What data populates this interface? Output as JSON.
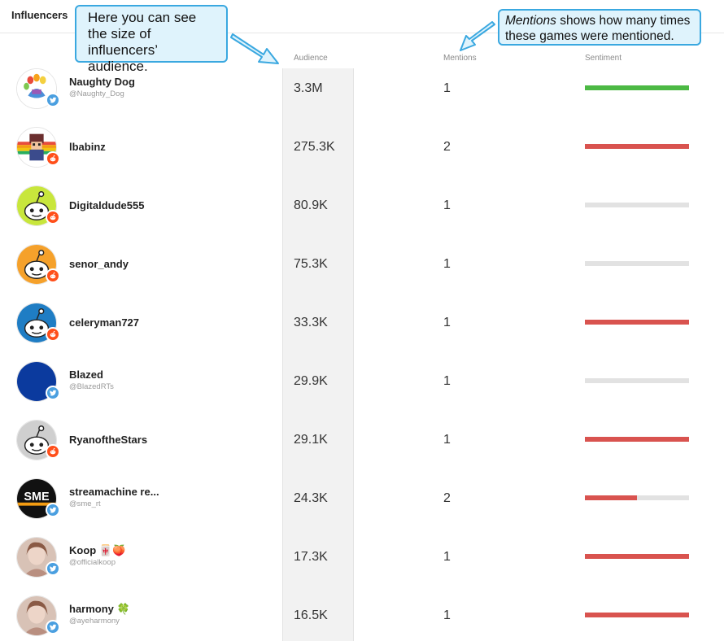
{
  "section_title": "Influencers",
  "columns": {
    "audience": "Audience",
    "mentions": "Mentions",
    "sentiment": "Sentiment"
  },
  "callouts": {
    "audience_text": "Here you can see the size of influencers’ audience.",
    "mentions_emphasis": "Mentions",
    "mentions_text": " shows how many times these games were mentioned."
  },
  "colors": {
    "positive": "#4cb944",
    "negative": "#d9534f",
    "neutral": "#e2e2e2",
    "twitter": "#4a9fe0",
    "reddit": "#ff4f1a"
  },
  "influencers": [
    {
      "name": "Naughty Dog",
      "handle": "@Naughty_Dog",
      "platform": "twitter",
      "audience": "3.3M",
      "mentions": "1",
      "sentiment": "positive",
      "sentiment_fill": 1.0
    },
    {
      "name": "lbabinz",
      "handle": "",
      "platform": "reddit",
      "audience": "275.3K",
      "mentions": "2",
      "sentiment": "negative",
      "sentiment_fill": 1.0
    },
    {
      "name": "Digitaldude555",
      "handle": "",
      "platform": "reddit",
      "audience": "80.9K",
      "mentions": "1",
      "sentiment": "neutral",
      "sentiment_fill": 1.0
    },
    {
      "name": "senor_andy",
      "handle": "",
      "platform": "reddit",
      "audience": "75.3K",
      "mentions": "1",
      "sentiment": "neutral",
      "sentiment_fill": 1.0
    },
    {
      "name": "celeryman727",
      "handle": "",
      "platform": "reddit",
      "audience": "33.3K",
      "mentions": "1",
      "sentiment": "negative",
      "sentiment_fill": 1.0
    },
    {
      "name": "Blazed",
      "handle": "@BlazedRTs",
      "platform": "twitter",
      "audience": "29.9K",
      "mentions": "1",
      "sentiment": "neutral",
      "sentiment_fill": 1.0
    },
    {
      "name": "RyanoftheStars",
      "handle": "",
      "platform": "reddit",
      "audience": "29.1K",
      "mentions": "1",
      "sentiment": "negative",
      "sentiment_fill": 1.0
    },
    {
      "name": "streamachine re...",
      "handle": "@sme_rt",
      "platform": "twitter",
      "audience": "24.3K",
      "mentions": "2",
      "sentiment": "mixed",
      "sentiment_fill": 0.5
    },
    {
      "name": "Koop 🀄🍑",
      "handle": "@officialkoop",
      "platform": "twitter",
      "audience": "17.3K",
      "mentions": "1",
      "sentiment": "negative",
      "sentiment_fill": 1.0
    },
    {
      "name": "harmony 🍀",
      "handle": "@ayeharmony",
      "platform": "twitter",
      "audience": "16.5K",
      "mentions": "1",
      "sentiment": "negative",
      "sentiment_fill": 1.0
    }
  ],
  "avatar_icons": [
    "paw-rainbow-logo-icon",
    "pixel-art-avatar-icon",
    "reddit-alien-green-icon",
    "reddit-alien-orange-icon",
    "reddit-alien-blue-icon",
    "blue-circle-avatar-icon",
    "reddit-alien-grey-icon",
    "sme-logo-icon",
    "photo-avatar-icon",
    "photo-avatar-icon"
  ],
  "sme_logo_text": "SME"
}
